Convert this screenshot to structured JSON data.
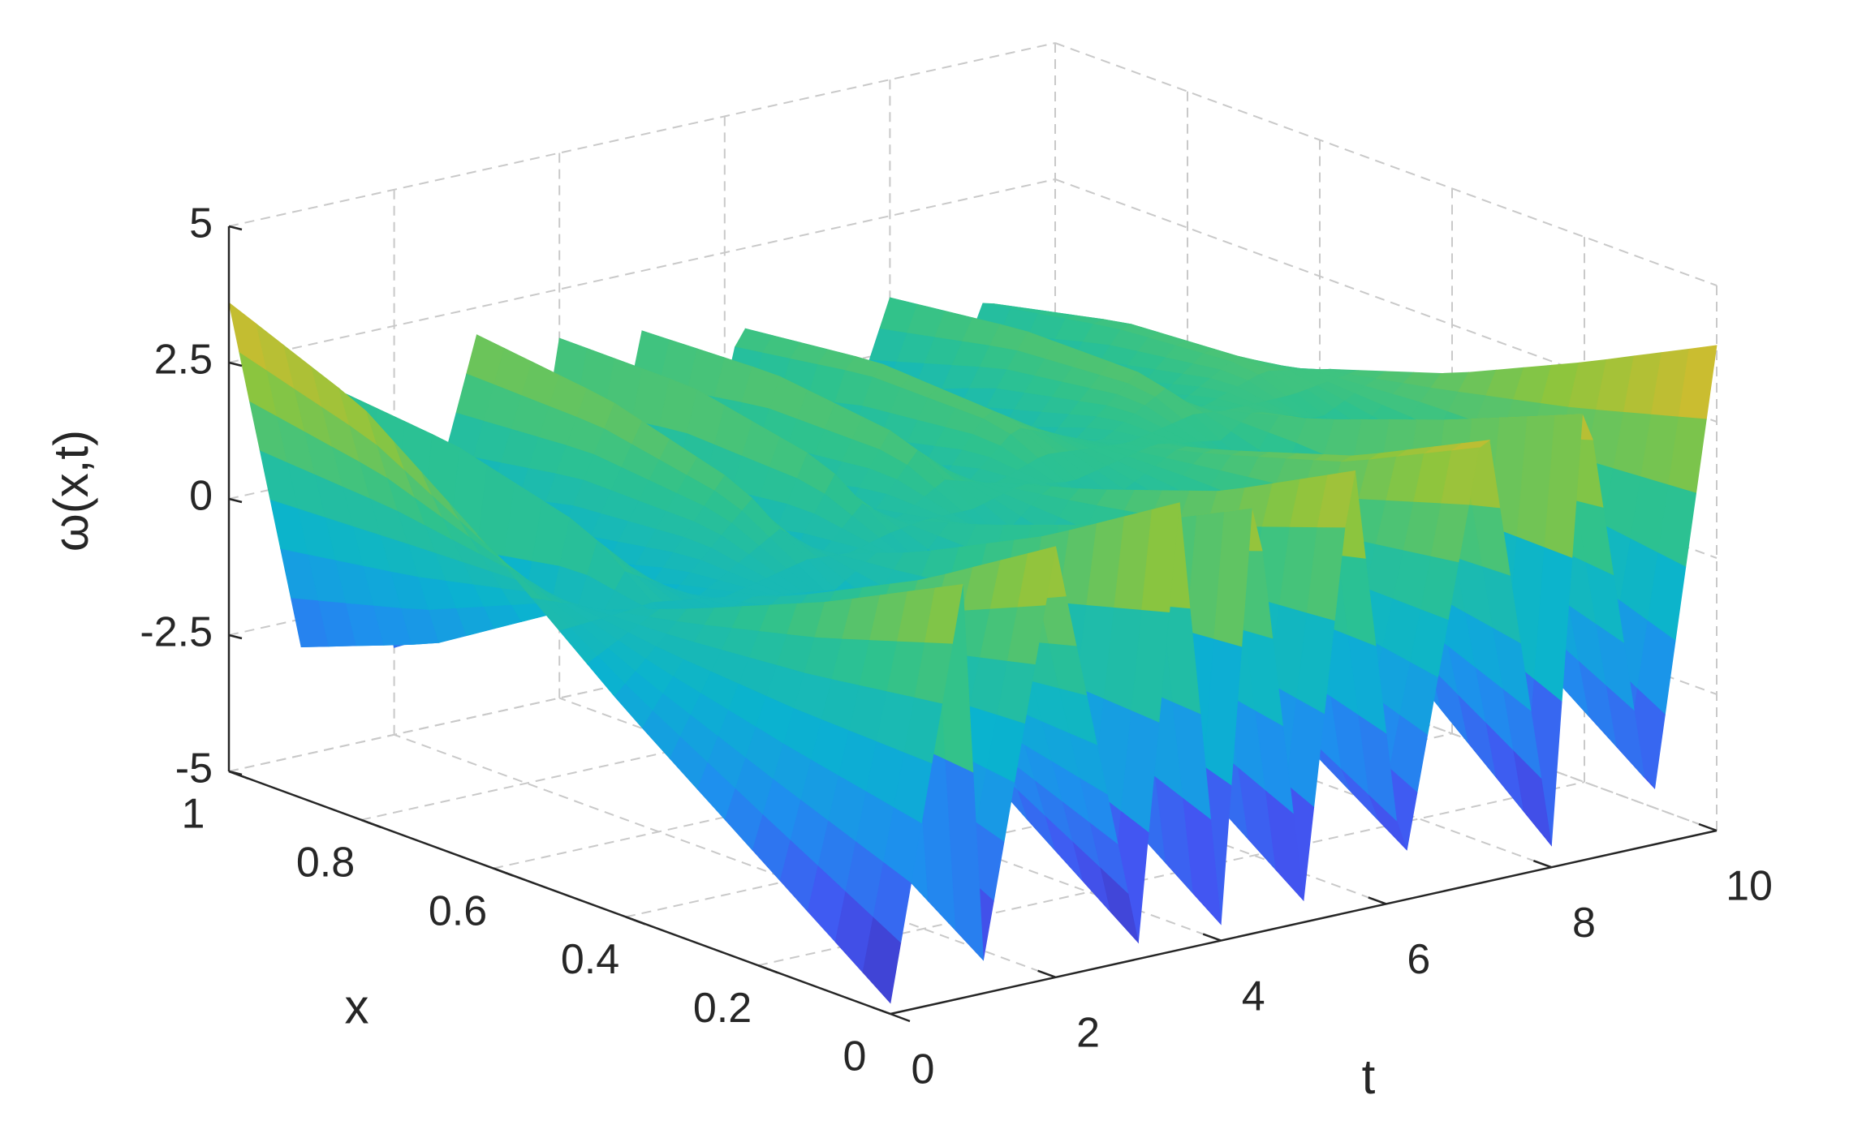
{
  "chart_data": {
    "type": "surface",
    "title": "",
    "xlabel": "x",
    "ylabel": "t",
    "zlabel": "ω(x,t)",
    "xlim": [
      0,
      1
    ],
    "tlim": [
      0,
      10
    ],
    "zlim": [
      -5,
      5
    ],
    "x_ticks": [
      0,
      0.2,
      0.4,
      0.6,
      0.8,
      1
    ],
    "x_tick_labels": [
      "0",
      "0.2",
      "0.4",
      "0.6",
      "0.8",
      "1"
    ],
    "t_ticks": [
      0,
      2,
      4,
      6,
      8,
      10
    ],
    "t_tick_labels": [
      "0",
      "2",
      "4",
      "6",
      "8",
      "10"
    ],
    "z_ticks": [
      -5,
      -2.5,
      0,
      2.5,
      5
    ],
    "z_tick_labels": [
      "-5",
      "-2.5",
      "0",
      "2.5",
      "5"
    ],
    "grid": true,
    "colormap": "parula",
    "colormap_stops": [
      "#3e26a8",
      "#4256f2",
      "#1e8fee",
      "#0ab3cf",
      "#2ec28e",
      "#8cc53e",
      "#e4b92a",
      "#f9fb15"
    ],
    "surface_samples": {
      "x": [
        0,
        0.2,
        0.4,
        0.6,
        0.8,
        1.0
      ],
      "t": [
        0,
        0.9,
        1.1,
        2,
        3,
        3.5,
        4,
        4.4,
        5,
        5.6,
        6.2,
        7.2,
        8,
        8.4,
        9.2,
        10
      ],
      "z": [
        [
          -4.8,
          2.8,
          -4.6,
          2.9,
          -4.7,
          3.2,
          -4.7,
          3.3,
          -4.6,
          3.4,
          -4.5,
          3.6,
          -4.6,
          3.7,
          -4.5,
          3.9
        ],
        [
          -3.0,
          1.5,
          -2.8,
          1.4,
          -2.9,
          1.7,
          -2.9,
          1.9,
          -2.8,
          2.0,
          -2.7,
          2.2,
          -2.5,
          2.5,
          -2.4,
          2.7
        ],
        [
          -1.2,
          0.4,
          -1.0,
          0.2,
          -0.8,
          0.5,
          -0.6,
          0.8,
          -0.5,
          1.0,
          -0.3,
          1.2,
          -0.1,
          1.4,
          0.0,
          1.6
        ],
        [
          0.8,
          -0.6,
          0.9,
          -0.7,
          1.0,
          -0.4,
          1.1,
          -0.1,
          1.2,
          0.2,
          1.2,
          0.4,
          1.3,
          0.6,
          1.2,
          0.8
        ],
        [
          2.6,
          -2.2,
          1.6,
          -1.8,
          1.7,
          -1.5,
          1.6,
          -1.2,
          1.5,
          -1.0,
          1.4,
          -0.7,
          1.3,
          -0.5,
          1.1,
          -0.3
        ],
        [
          3.6,
          -3.2,
          1.9,
          -3.4,
          2.0,
          -3.0,
          1.6,
          -2.8,
          1.4,
          -2.6,
          1.2,
          -2.4,
          1.0,
          -2.2,
          0.8,
          -4.5
        ]
      ]
    }
  }
}
